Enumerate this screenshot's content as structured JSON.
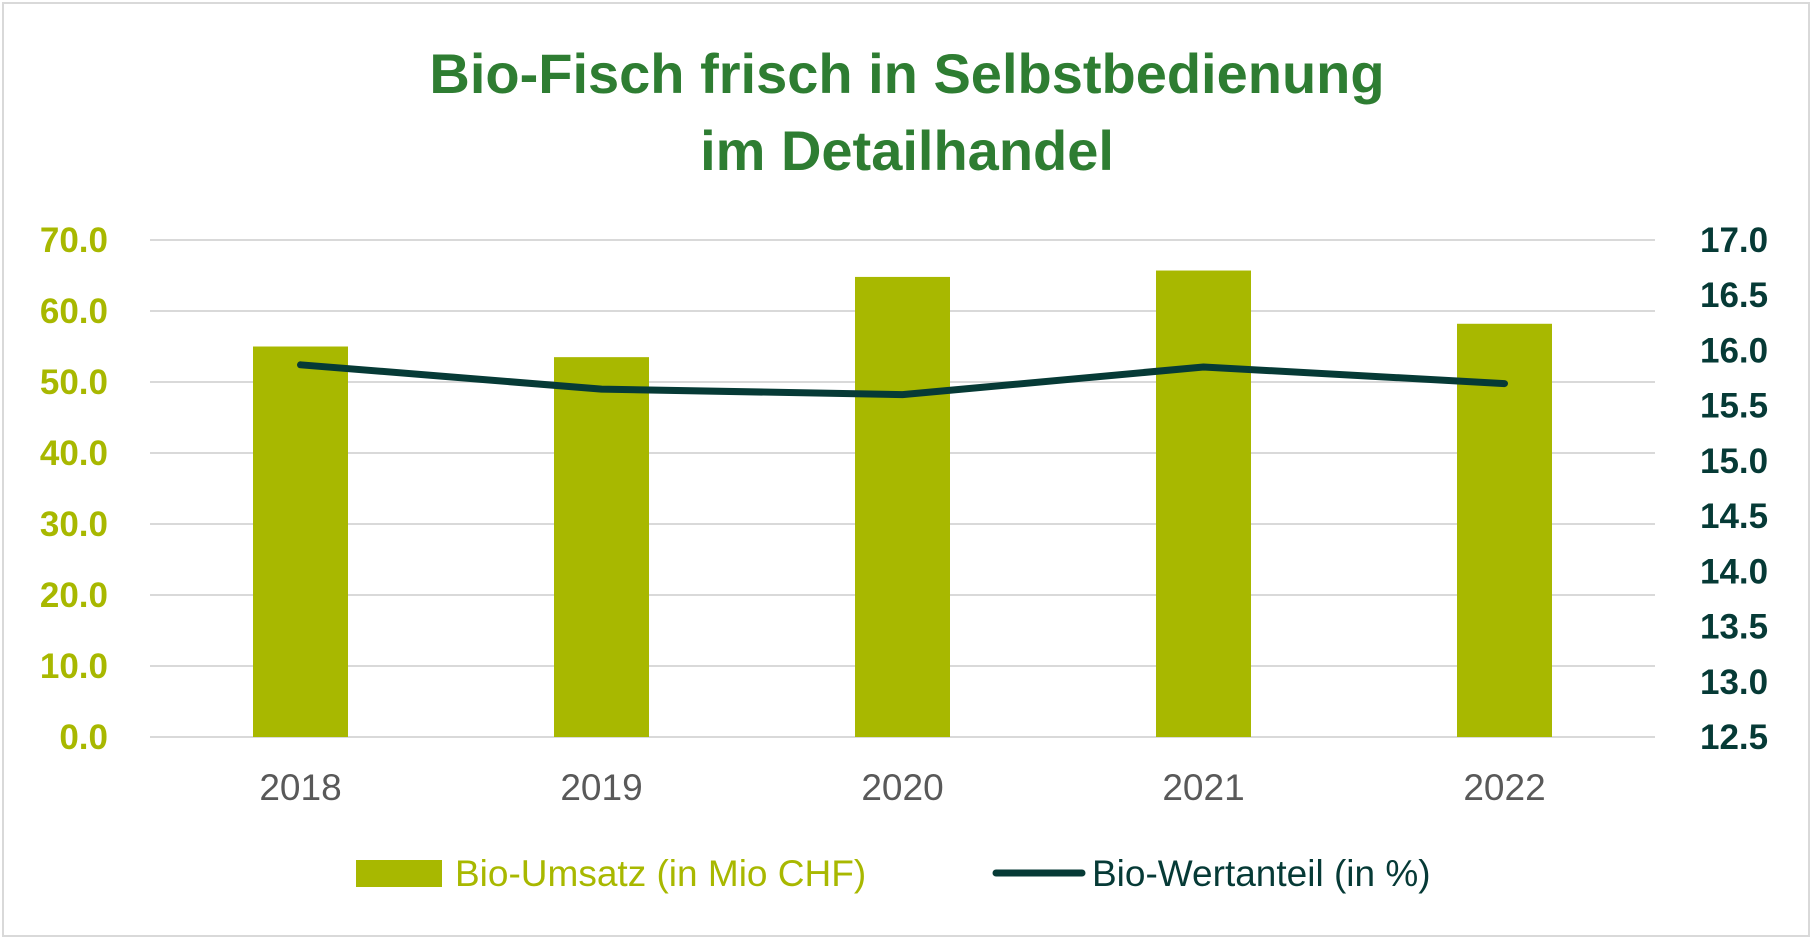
{
  "chart_data": {
    "type": "bar+line",
    "title_lines": [
      "Bio-Fisch frisch in Selbstbedienung",
      "im Detailhandel"
    ],
    "categories": [
      "2018",
      "2019",
      "2020",
      "2021",
      "2022"
    ],
    "series": [
      {
        "name": "Bio-Umsatz (in Mio CHF)",
        "type": "bar",
        "axis": "left",
        "color": "#a8b800",
        "values": [
          55.0,
          53.5,
          64.8,
          65.7,
          58.2
        ]
      },
      {
        "name": "Bio-Wertanteil (in %)",
        "type": "line",
        "axis": "right",
        "color": "#063a36",
        "values": [
          15.87,
          15.65,
          15.6,
          15.85,
          15.7
        ]
      }
    ],
    "y_left": {
      "min": 0,
      "max": 70,
      "step": 10,
      "tick_labels": [
        "0.0",
        "10.0",
        "20.0",
        "30.0",
        "40.0",
        "50.0",
        "60.0",
        "70.0"
      ],
      "color": "#a8b800"
    },
    "y_right": {
      "min": 12.5,
      "max": 17.0,
      "step": 0.5,
      "tick_labels": [
        "12.5",
        "13.0",
        "13.5",
        "14.0",
        "14.5",
        "15.0",
        "15.5",
        "16.0",
        "16.5",
        "17.0"
      ],
      "color": "#063a36"
    },
    "title_color": "#2e7d32",
    "xtick_color": "#595959",
    "grid": true,
    "legend_position": "bottom"
  }
}
